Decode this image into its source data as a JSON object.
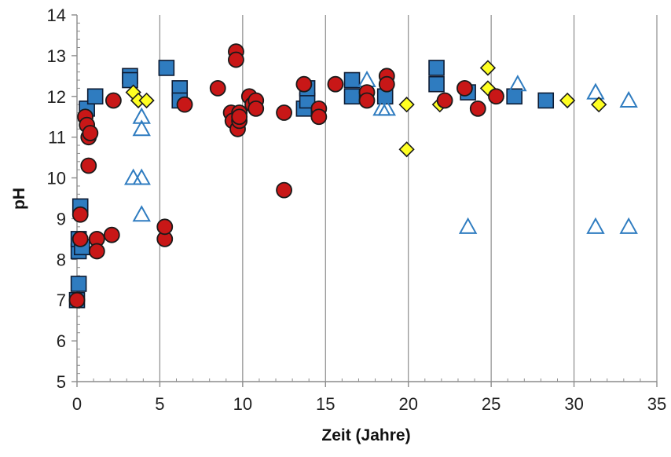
{
  "chart_data": {
    "type": "scatter",
    "title": "",
    "xlabel": "Zeit (Jahre)",
    "ylabel": "pH",
    "xlim": [
      0,
      35
    ],
    "ylim": [
      5,
      14
    ],
    "xticks": [
      "0",
      "5",
      "10",
      "15",
      "20",
      "25",
      "30",
      "35"
    ],
    "yticks": [
      "5",
      "6",
      "7",
      "8",
      "9",
      "10",
      "11",
      "12",
      "13",
      "14"
    ],
    "xticks_values": [
      0,
      5,
      10,
      15,
      20,
      25,
      30,
      35
    ],
    "yticks_values": [
      5,
      6,
      7,
      8,
      9,
      10,
      11,
      12,
      13,
      14
    ],
    "vertical_gridlines": true,
    "horizontal_gridlines": false,
    "legend": "none",
    "series": [
      {
        "marker": "square",
        "fill": "#2f7cc0",
        "stroke": "#0d1b33",
        "points": [
          [
            0.0,
            7.0
          ],
          [
            0.1,
            7.4
          ],
          [
            0.1,
            8.2
          ],
          [
            0.1,
            8.5
          ],
          [
            0.2,
            9.3
          ],
          [
            0.3,
            8.3
          ],
          [
            0.6,
            11.7
          ],
          [
            1.1,
            12.0
          ],
          [
            3.2,
            12.5
          ],
          [
            3.2,
            12.4
          ],
          [
            5.4,
            12.7
          ],
          [
            6.2,
            12.2
          ],
          [
            6.2,
            11.9
          ],
          [
            13.7,
            11.7
          ],
          [
            13.9,
            11.9
          ],
          [
            13.9,
            12.2
          ],
          [
            16.6,
            12.4
          ],
          [
            16.6,
            12.0
          ],
          [
            18.6,
            12.0
          ],
          [
            21.7,
            12.7
          ],
          [
            21.7,
            12.3
          ],
          [
            23.6,
            12.1
          ],
          [
            26.4,
            12.0
          ],
          [
            28.3,
            11.9
          ]
        ]
      },
      {
        "marker": "triangle-open",
        "fill": "none",
        "stroke": "#2f7cc0",
        "points": [
          [
            3.4,
            10.0
          ],
          [
            3.9,
            11.5
          ],
          [
            3.9,
            11.2
          ],
          [
            3.9,
            10.0
          ],
          [
            3.9,
            9.1
          ],
          [
            17.5,
            12.4
          ],
          [
            18.4,
            11.7
          ],
          [
            18.7,
            11.7
          ],
          [
            23.6,
            8.8
          ],
          [
            26.6,
            12.3
          ],
          [
            31.3,
            12.1
          ],
          [
            31.3,
            8.8
          ],
          [
            33.3,
            11.9
          ],
          [
            33.3,
            8.8
          ]
        ]
      },
      {
        "marker": "diamond",
        "fill": "#ffff22",
        "stroke": "#1a1a1a",
        "points": [
          [
            3.4,
            12.1
          ],
          [
            3.7,
            11.9
          ],
          [
            4.2,
            11.9
          ],
          [
            19.9,
            11.8
          ],
          [
            19.9,
            10.7
          ],
          [
            21.9,
            11.8
          ],
          [
            24.8,
            12.7
          ],
          [
            24.8,
            12.2
          ],
          [
            29.6,
            11.9
          ],
          [
            31.5,
            11.8
          ]
        ]
      },
      {
        "marker": "circle",
        "fill": "#c81717",
        "stroke": "#1a1a1a",
        "points": [
          [
            0.0,
            7.0
          ],
          [
            0.2,
            9.1
          ],
          [
            0.2,
            8.5
          ],
          [
            0.5,
            11.5
          ],
          [
            0.6,
            11.3
          ],
          [
            0.7,
            11.0
          ],
          [
            0.8,
            11.1
          ],
          [
            0.7,
            10.3
          ],
          [
            1.2,
            8.5
          ],
          [
            1.2,
            8.2
          ],
          [
            2.1,
            8.6
          ],
          [
            2.2,
            11.9
          ],
          [
            5.3,
            8.5
          ],
          [
            5.3,
            8.8
          ],
          [
            6.5,
            11.8
          ],
          [
            8.5,
            12.2
          ],
          [
            9.3,
            11.6
          ],
          [
            9.4,
            11.4
          ],
          [
            9.6,
            13.1
          ],
          [
            9.6,
            12.9
          ],
          [
            9.7,
            11.2
          ],
          [
            9.8,
            11.4
          ],
          [
            9.8,
            11.6
          ],
          [
            9.8,
            11.5
          ],
          [
            10.4,
            12.0
          ],
          [
            10.6,
            11.8
          ],
          [
            10.8,
            11.9
          ],
          [
            10.8,
            11.7
          ],
          [
            12.5,
            11.6
          ],
          [
            12.5,
            9.7
          ],
          [
            13.7,
            12.3
          ],
          [
            14.6,
            11.7
          ],
          [
            14.6,
            11.5
          ],
          [
            15.6,
            12.3
          ],
          [
            17.5,
            12.1
          ],
          [
            17.5,
            11.9
          ],
          [
            18.7,
            12.5
          ],
          [
            18.7,
            12.3
          ],
          [
            22.2,
            11.9
          ],
          [
            23.4,
            12.2
          ],
          [
            24.2,
            11.7
          ],
          [
            25.3,
            12.0
          ]
        ]
      }
    ]
  }
}
